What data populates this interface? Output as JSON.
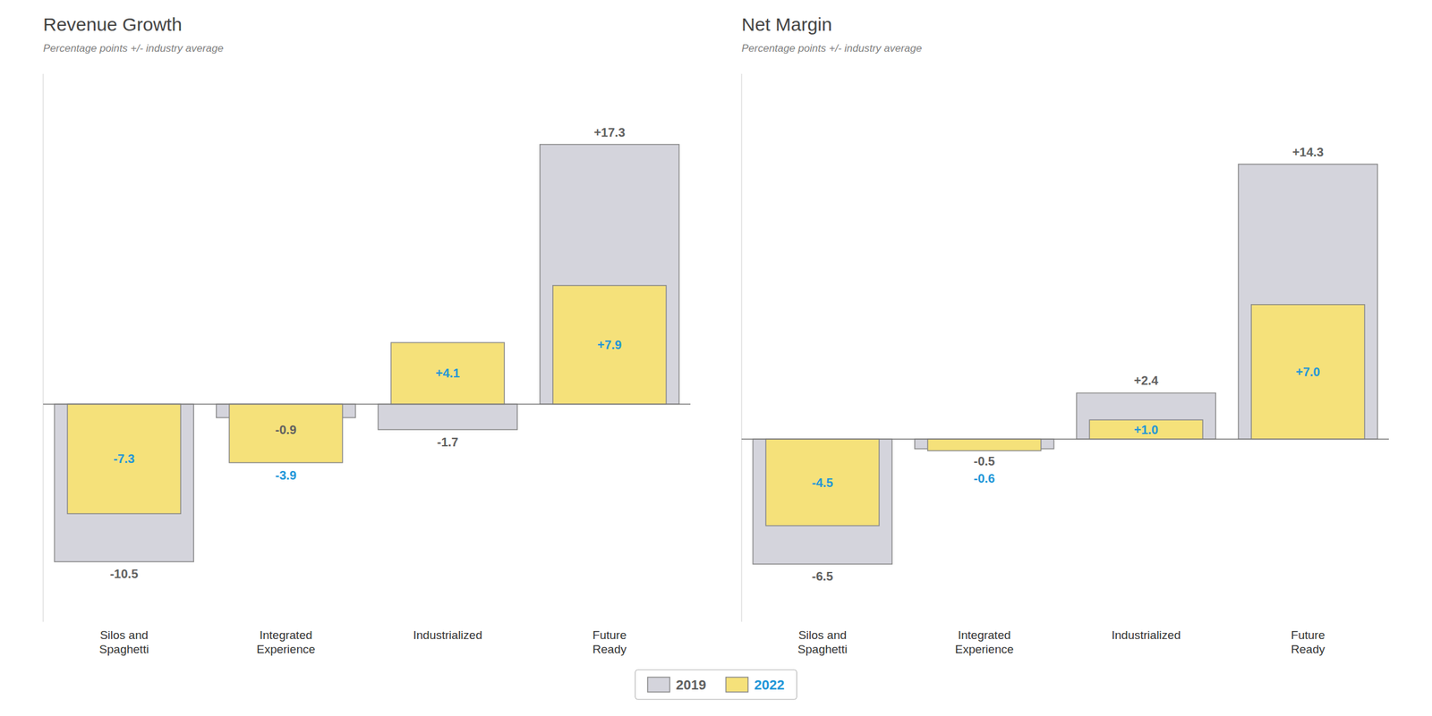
{
  "chart_data": [
    {
      "type": "bar",
      "title": "Revenue Growth",
      "subtitle": "Percentage points +/- industry average",
      "categories": [
        "Silos and\nSpaghetti",
        "Integrated\nExperience",
        "Industrialized",
        "Future\nReady"
      ],
      "series": [
        {
          "name": "2019",
          "color": "#d4d4dc",
          "values": [
            -10.5,
            -0.9,
            -1.7,
            17.3
          ],
          "value_labels": [
            "-10.5",
            "-0.9",
            "-1.7",
            "+17.3"
          ]
        },
        {
          "name": "2022",
          "color": "#f5e17a",
          "values": [
            -7.3,
            -3.9,
            4.1,
            7.9
          ],
          "value_labels": [
            "-7.3",
            "-3.9",
            "+4.1",
            "+7.9"
          ]
        }
      ],
      "ylim": [
        -14.5,
        22.0
      ],
      "grid": false,
      "legend": "bottom",
      "data_labels": true,
      "tick_labels": "x"
    },
    {
      "type": "bar",
      "title": "Net Margin",
      "subtitle": "Percentage points +/- industry average",
      "categories": [
        "Silos and\nSpaghetti",
        "Integrated\nExperience",
        "Industrialized",
        "Future\nReady"
      ],
      "series": [
        {
          "color": "#d4d4dc",
          "values": [
            -6.5,
            -0.5,
            2.4,
            14.3
          ],
          "value_labels": [
            "-6.5",
            "-0.5",
            "+2.4",
            "+14.3"
          ]
        },
        {
          "color": "#f5e17a",
          "values": [
            -4.5,
            -0.6,
            1.0,
            7.0
          ],
          "value_labels": [
            "-4.5",
            "-0.6",
            "+1.0",
            "+7.0"
          ]
        }
      ],
      "ylim": [
        -9.5,
        19.0
      ],
      "grid": false,
      "data_labels": true,
      "tick_labels": "x"
    }
  ]
}
